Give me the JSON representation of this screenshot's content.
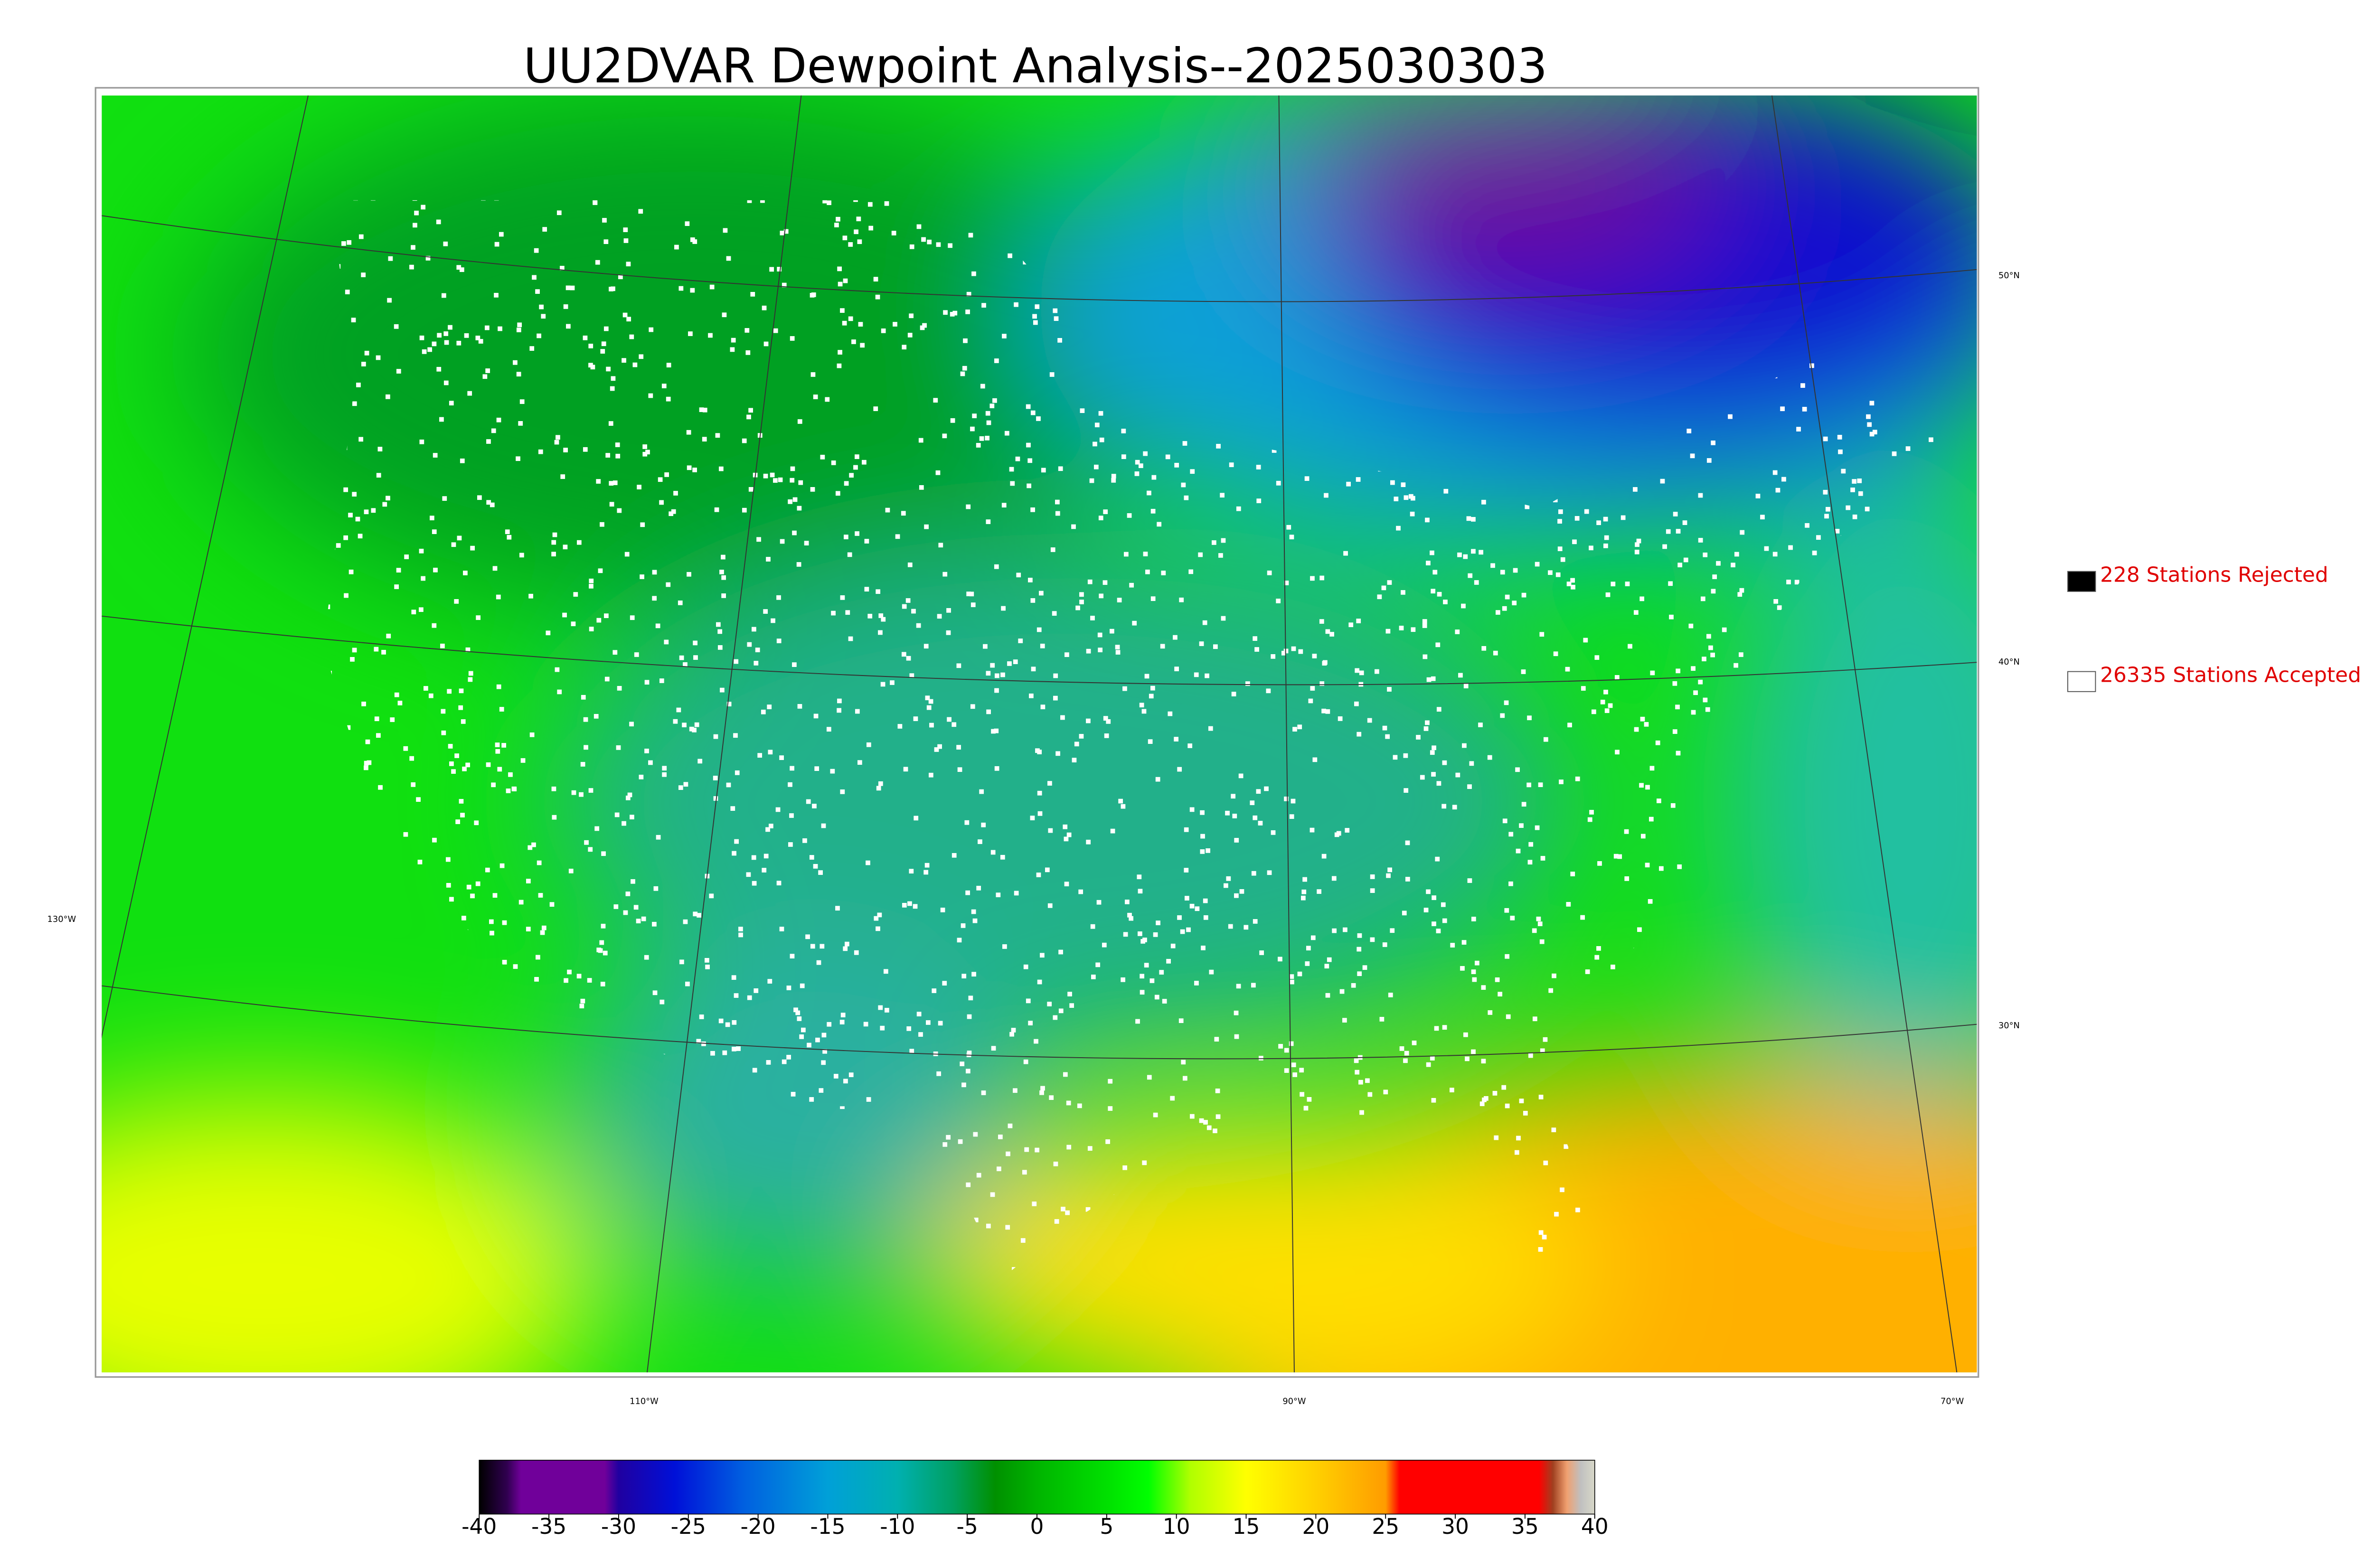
{
  "title": "UU2DVAR Dewpoint Analysis--2025030303",
  "legend": [
    {
      "label": "228 Stations Rejected",
      "color": "#000000"
    },
    {
      "label": "26335 Stations Accepted",
      "color": "#ffffff"
    }
  ],
  "graticule_labels": {
    "latitude": [
      "50°N",
      "40°N",
      "30°N"
    ],
    "longitude": [
      "130°W",
      "110°W",
      "90°W",
      "70°W"
    ]
  },
  "colorbar": {
    "lim": [
      -40,
      40
    ],
    "ticks": [
      -40,
      -35,
      -30,
      -25,
      -20,
      -15,
      -10,
      -5,
      0,
      5,
      10,
      15,
      20,
      25,
      30,
      35,
      40
    ],
    "stops": [
      {
        "value": -40,
        "color": "#000000"
      },
      {
        "value": -38,
        "color": "#300050"
      },
      {
        "value": -37,
        "color": "#70009a"
      },
      {
        "value": -31,
        "color": "#70009a"
      },
      {
        "value": -30,
        "color": "#2000a0"
      },
      {
        "value": -26,
        "color": "#0010d8"
      },
      {
        "value": -21,
        "color": "#0060e0"
      },
      {
        "value": -15,
        "color": "#00a0d8"
      },
      {
        "value": -10,
        "color": "#00b0b0"
      },
      {
        "value": -6,
        "color": "#00a060"
      },
      {
        "value": -3,
        "color": "#009000"
      },
      {
        "value": 0,
        "color": "#00b400"
      },
      {
        "value": 5,
        "color": "#00e000"
      },
      {
        "value": 8,
        "color": "#00ff00"
      },
      {
        "value": 11,
        "color": "#b0ff00"
      },
      {
        "value": 15,
        "color": "#ffff00"
      },
      {
        "value": 20,
        "color": "#ffd000"
      },
      {
        "value": 25,
        "color": "#ff9c00"
      },
      {
        "value": 26,
        "color": "#ff0000"
      },
      {
        "value": 36,
        "color": "#ff0000"
      },
      {
        "value": 37,
        "color": "#a04020"
      },
      {
        "value": 38,
        "color": "#f0a070"
      },
      {
        "value": 39,
        "color": "#c0c0c0"
      },
      {
        "value": 40,
        "color": "#d8d8c8"
      }
    ]
  }
}
